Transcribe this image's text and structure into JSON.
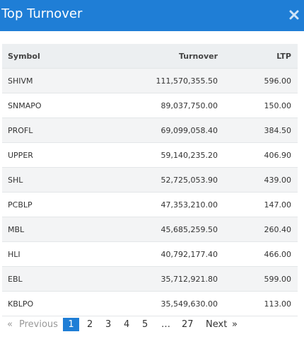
{
  "header": {
    "title": "Top Turnover"
  },
  "table": {
    "columns": [
      "Symbol",
      "Turnover",
      "LTP"
    ],
    "rows": [
      [
        "SHIVM",
        "111,570,355.50",
        "596.00"
      ],
      [
        "SNMAPO",
        "89,037,750.00",
        "150.00"
      ],
      [
        "PROFL",
        "69,099,058.40",
        "384.50"
      ],
      [
        "UPPER",
        "59,140,235.20",
        "406.90"
      ],
      [
        "SHL",
        "52,725,053.90",
        "439.00"
      ],
      [
        "PCBLP",
        "47,353,210.00",
        "147.00"
      ],
      [
        "MBL",
        "45,685,259.50",
        "260.40"
      ],
      [
        "HLI",
        "40,792,177.40",
        "466.00"
      ],
      [
        "EBL",
        "35,712,921.80",
        "599.00"
      ],
      [
        "KBLPO",
        "35,549,630.00",
        "113.00"
      ]
    ]
  },
  "pagination": {
    "items": [
      "«",
      "Previous",
      "1",
      "2",
      "3",
      "4",
      "5",
      "…",
      "27",
      "Next",
      "»"
    ]
  }
}
